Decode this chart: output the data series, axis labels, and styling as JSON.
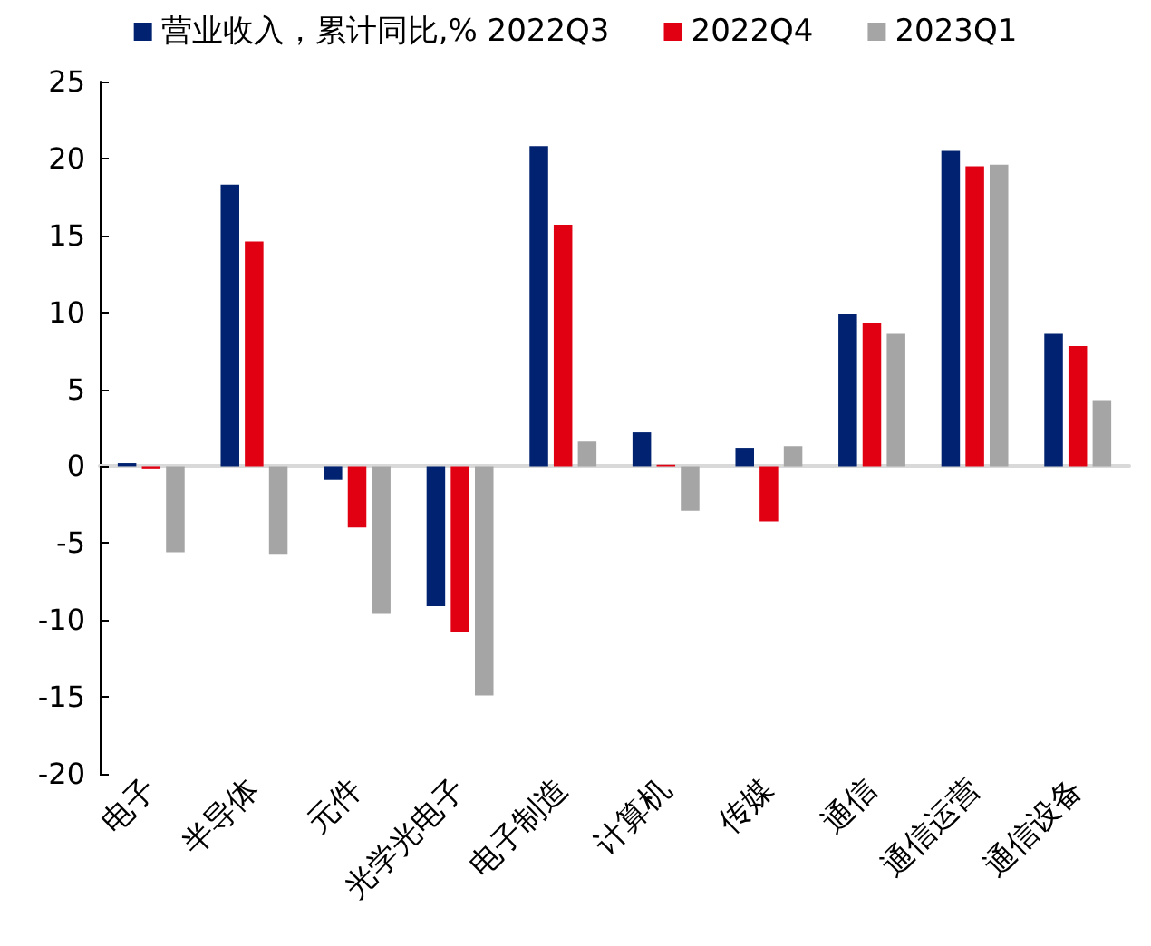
{
  "chart_data": {
    "type": "bar",
    "categories": [
      "电子",
      "半导体",
      "元件",
      "光学光电子",
      "电子制造",
      "计算机",
      "传媒",
      "通信",
      "通信运营",
      "通信设备"
    ],
    "series": [
      {
        "name": "营业收入，累计同比,% 2022Q3",
        "color": "#002270",
        "values": [
          0.2,
          18.3,
          -0.9,
          -9.1,
          20.8,
          2.2,
          1.2,
          9.9,
          20.5,
          8.6
        ]
      },
      {
        "name": "2022Q4",
        "color": "#e00012",
        "values": [
          -0.2,
          14.6,
          -4.0,
          -10.8,
          15.7,
          0.1,
          -3.6,
          9.3,
          19.5,
          7.8
        ]
      },
      {
        "name": "2023Q1",
        "color": "#a5a5a5",
        "values": [
          -5.6,
          -5.7,
          -9.6,
          -14.9,
          1.6,
          -2.9,
          1.3,
          8.6,
          19.6,
          4.3
        ]
      }
    ],
    "ylim": [
      -20,
      25
    ],
    "yticks": [
      -20,
      -15,
      -10,
      -5,
      0,
      5,
      10,
      15,
      20,
      25
    ],
    "legend": "top"
  }
}
